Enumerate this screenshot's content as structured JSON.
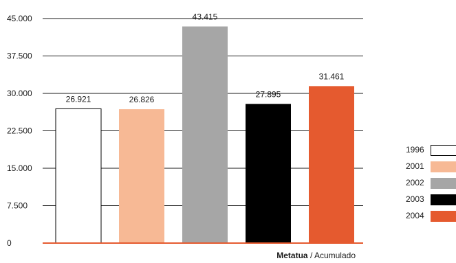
{
  "chart_data": {
    "type": "bar",
    "categories": [
      "1996",
      "2001",
      "2002",
      "2003",
      "2004"
    ],
    "values": [
      26921,
      26826,
      43415,
      27895,
      31461
    ],
    "value_labels": [
      "26.921",
      "26.826",
      "43.415",
      "27.895",
      "31.461"
    ],
    "colors": [
      "#ffffff",
      "#f7b995",
      "#a6a6a6",
      "#000000",
      "#e55a2f"
    ],
    "ylim": [
      0,
      45000
    ],
    "yticks": [
      0,
      7500,
      15000,
      22500,
      30000,
      37500,
      45000
    ],
    "ytick_labels": [
      "0",
      "7.500",
      "15.000",
      "22.500",
      "30.000",
      "37.500",
      "45.000"
    ],
    "grid": true,
    "legend_position": "right",
    "axis_color": "#e55a2f"
  },
  "caption": {
    "bold": "Metatua",
    "separator": " / ",
    "rest": "Acumulado"
  }
}
